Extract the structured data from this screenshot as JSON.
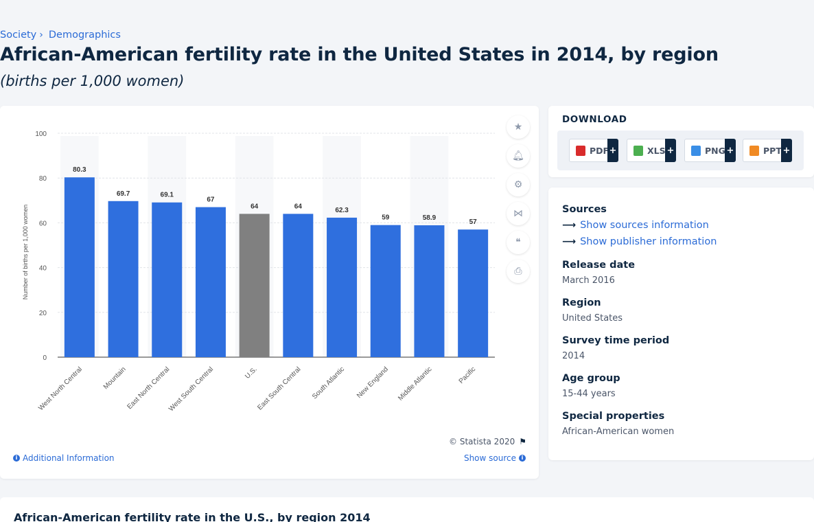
{
  "breadcrumb": {
    "items": [
      "Society",
      "Demographics"
    ],
    "separator": "›"
  },
  "page": {
    "title": "African-American fertility rate in the United States in 2014, by region",
    "subtitle": "(births per 1,000 women)"
  },
  "chart_footer": {
    "copyright": "© Statista 2020",
    "additional_info": "Additional Information",
    "show_source": "Show source"
  },
  "download": {
    "title": "DOWNLOAD",
    "buttons": [
      {
        "label": "PDF",
        "icon": "pdf-file-icon",
        "color": "#d92b2b"
      },
      {
        "label": "XLS",
        "icon": "xls-file-icon",
        "color": "#4caf50"
      },
      {
        "label": "PNG",
        "icon": "png-file-icon",
        "color": "#3a8ee6"
      },
      {
        "label": "PPT",
        "icon": "ppt-file-icon",
        "color": "#f08a24"
      }
    ],
    "plus": "+"
  },
  "info": {
    "sources_label": "Sources",
    "show_sources": "Show sources information",
    "show_publisher": "Show publisher information",
    "release_date_label": "Release date",
    "release_date": "March 2016",
    "region_label": "Region",
    "region": "United States",
    "survey_period_label": "Survey time period",
    "survey_period": "2014",
    "age_group_label": "Age group",
    "age_group": "15-44 years",
    "special_label": "Special properties",
    "special": "African-American women"
  },
  "bottom": {
    "title": "African-American fertility rate in the U.S., by region 2014"
  },
  "colors": {
    "bar": "#2f6fde",
    "highlight_bar": "#808080",
    "accent": "#2b6bd6",
    "navy": "#0f2741"
  },
  "chart_data": {
    "type": "bar",
    "categories": [
      "West North Central",
      "Mountain",
      "East North Central",
      "West South Central",
      "U.S.",
      "East South Central",
      "South Atlantic",
      "New England",
      "Middle Atlantic",
      "Pacific"
    ],
    "values": [
      80.3,
      69.7,
      69.1,
      67,
      64,
      64,
      62.3,
      59,
      58.9,
      57
    ],
    "value_labels": [
      "80.3",
      "69.7",
      "69.1",
      "67",
      "64",
      "64",
      "62.3",
      "59",
      "58.9",
      "57"
    ],
    "highlight_category": "U.S.",
    "ylabel": "Number of births per 1,000 women",
    "xlabel": "",
    "ylim": [
      0,
      100
    ],
    "yticks": [
      0,
      20,
      40,
      60,
      80,
      100
    ],
    "grid": true
  }
}
